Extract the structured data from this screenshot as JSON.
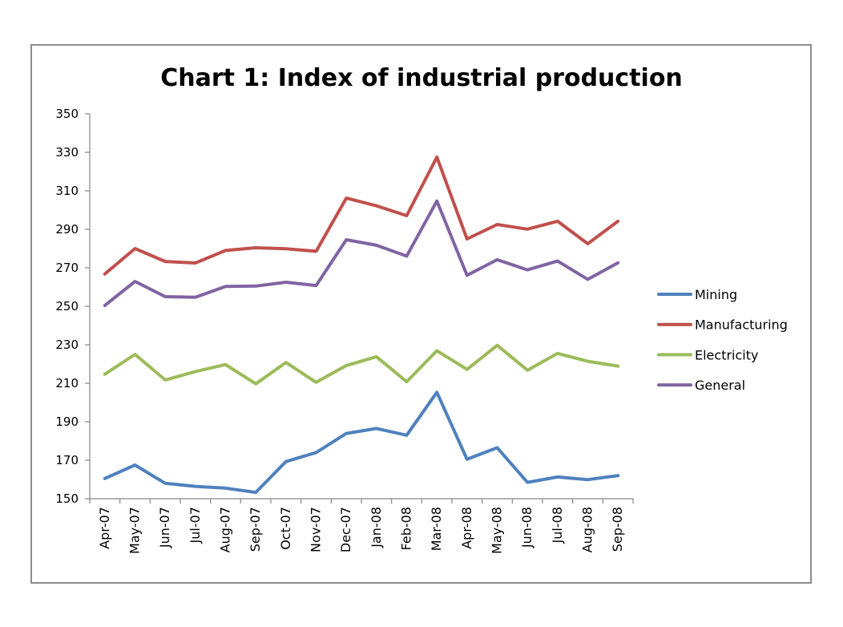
{
  "chart_data": {
    "type": "line",
    "title": "Chart 1: Index of industrial production",
    "xlabel": "",
    "ylabel": "",
    "ylim": [
      150,
      350
    ],
    "yticks": [
      150,
      170,
      190,
      210,
      230,
      250,
      270,
      290,
      310,
      330,
      350
    ],
    "grid": false,
    "legend_position": "right",
    "categories": [
      "Apr-07",
      "May-07",
      "Jun-07",
      "Jul-07",
      "Aug-07",
      "Sep-07",
      "Oct-07",
      "Nov-07",
      "Dec-07",
      "Jan-08",
      "Feb-08",
      "Mar-08",
      "Apr-08",
      "May-08",
      "Jun-08",
      "Jul-08",
      "Aug-08",
      "Sep-08"
    ],
    "series": [
      {
        "name": "Mining",
        "color": "#4f81bd",
        "values": [
          160.5,
          167.5,
          158.0,
          156.4,
          155.5,
          153.3,
          169.3,
          174.0,
          183.9,
          186.5,
          183.0,
          205.3,
          170.5,
          176.5,
          158.5,
          161.3,
          159.9,
          162.0
        ]
      },
      {
        "name": "Manufacturing",
        "color": "#c0504d",
        "values": [
          266.8,
          280.0,
          273.3,
          272.5,
          279.0,
          280.4,
          279.9,
          278.6,
          306.2,
          302.2,
          297.1,
          327.5,
          285.0,
          292.5,
          290.1,
          294.2,
          282.5,
          294.2
        ]
      },
      {
        "name": "Electricity",
        "color": "#9bbb59",
        "values": [
          214.7,
          225.0,
          211.7,
          216.1,
          219.7,
          209.7,
          220.8,
          210.5,
          219.2,
          223.8,
          210.8,
          226.9,
          217.2,
          229.7,
          216.8,
          225.5,
          221.4,
          218.9
        ]
      },
      {
        "name": "General",
        "color": "#8064a2",
        "values": [
          250.4,
          262.9,
          255.0,
          254.7,
          260.3,
          260.5,
          262.5,
          260.8,
          284.6,
          281.7,
          276.1,
          304.7,
          266.1,
          274.2,
          268.9,
          273.5,
          264.0,
          272.6
        ]
      }
    ]
  }
}
